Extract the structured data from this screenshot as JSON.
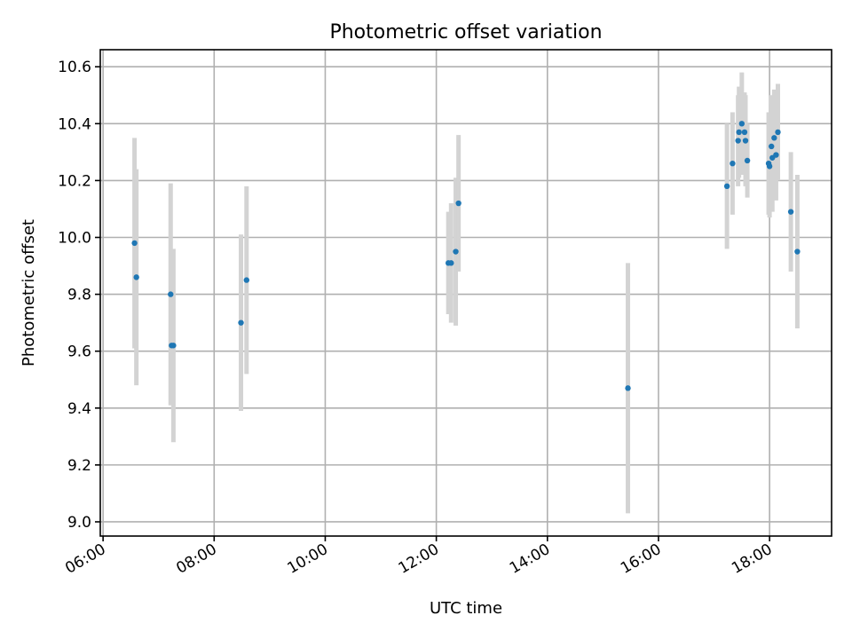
{
  "chart_data": {
    "type": "scatter",
    "title": "Photometric offset variation",
    "xlabel": "UTC time",
    "ylabel": "Photometric offset",
    "x_ticks": [
      "06:00",
      "08:00",
      "10:00",
      "12:00",
      "14:00",
      "16:00",
      "18:00"
    ],
    "y_ticks": [
      "9.0",
      "9.2",
      "9.4",
      "9.6",
      "9.8",
      "10.0",
      "10.2",
      "10.4",
      "10.6"
    ],
    "xlim": [
      "05:57",
      "19:07"
    ],
    "ylim": [
      8.95,
      10.66
    ],
    "grid": true,
    "colors": {
      "points": "#1f77b4",
      "error_bars": "#d3d3d3"
    },
    "points": [
      {
        "x": "06:34",
        "y": 9.98,
        "err": 0.37
      },
      {
        "x": "06:36",
        "y": 9.86,
        "err": 0.38
      },
      {
        "x": "07:13",
        "y": 9.8,
        "err": 0.39
      },
      {
        "x": "07:14",
        "y": 9.62,
        "err": 0.21
      },
      {
        "x": "07:16",
        "y": 9.62,
        "err": 0.34
      },
      {
        "x": "08:29",
        "y": 9.7,
        "err": 0.31
      },
      {
        "x": "08:35",
        "y": 9.85,
        "err": 0.33
      },
      {
        "x": "12:13",
        "y": 9.91,
        "err": 0.18
      },
      {
        "x": "12:16",
        "y": 9.91,
        "err": 0.21
      },
      {
        "x": "12:21",
        "y": 9.95,
        "err": 0.26
      },
      {
        "x": "12:24",
        "y": 10.12,
        "err": 0.24
      },
      {
        "x": "15:27",
        "y": 9.47,
        "err": 0.44
      },
      {
        "x": "17:14",
        "y": 10.18,
        "err": 0.22
      },
      {
        "x": "17:20",
        "y": 10.26,
        "err": 0.18
      },
      {
        "x": "17:26",
        "y": 10.34,
        "err": 0.16
      },
      {
        "x": "17:27",
        "y": 10.37,
        "err": 0.16
      },
      {
        "x": "17:30",
        "y": 10.4,
        "err": 0.18
      },
      {
        "x": "17:33",
        "y": 10.37,
        "err": 0.14
      },
      {
        "x": "17:34",
        "y": 10.34,
        "err": 0.16
      },
      {
        "x": "17:36",
        "y": 10.27,
        "err": 0.13
      },
      {
        "x": "17:59",
        "y": 10.26,
        "err": 0.18
      },
      {
        "x": "18:00",
        "y": 10.25,
        "err": 0.18
      },
      {
        "x": "18:02",
        "y": 10.32,
        "err": 0.18
      },
      {
        "x": "18:03",
        "y": 10.28,
        "err": 0.19
      },
      {
        "x": "18:05",
        "y": 10.35,
        "err": 0.17
      },
      {
        "x": "18:07",
        "y": 10.29,
        "err": 0.16
      },
      {
        "x": "18:09",
        "y": 10.37,
        "err": 0.17
      },
      {
        "x": "18:23",
        "y": 10.09,
        "err": 0.21
      },
      {
        "x": "18:30",
        "y": 9.95,
        "err": 0.27
      }
    ]
  }
}
